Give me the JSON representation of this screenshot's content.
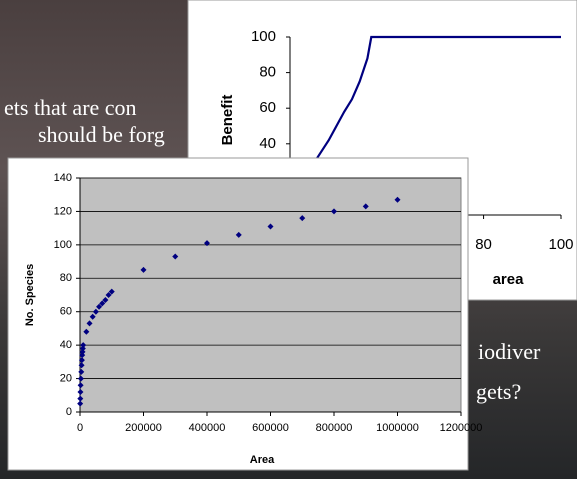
{
  "slide_text": [
    "ets that are con",
    "should be forg",
    "iodiver",
    "gets?"
  ],
  "chart_data": [
    {
      "type": "line",
      "y_label": "Benefit",
      "x_label": "area",
      "series": [
        {
          "name": "Benefit",
          "color": "#000080",
          "x": [
            37,
            40,
            42,
            44,
            46,
            48,
            50,
            51,
            100
          ],
          "values": [
            32,
            42,
            50,
            58,
            65,
            75,
            88,
            100,
            100
          ]
        }
      ],
      "xlim": [
        30,
        100
      ],
      "xticks": [
        80,
        100
      ],
      "ylim": [
        0,
        100
      ],
      "yticks": [
        40,
        60,
        80,
        100
      ]
    },
    {
      "type": "scatter",
      "y_label": "No. Species",
      "x_label": "Area",
      "series": [
        {
          "name": "No. Species",
          "color": "#000080",
          "x": [
            500,
            1000,
            1500,
            2000,
            3000,
            4000,
            5000,
            6000,
            7000,
            8000,
            9000,
            10000,
            20000,
            30000,
            40000,
            50000,
            60000,
            70000,
            80000,
            90000,
            100000,
            200000,
            300000,
            400000,
            500000,
            600000,
            700000,
            800000,
            900000,
            1000000
          ],
          "values": [
            5,
            8,
            12,
            16,
            20,
            24,
            28,
            31,
            34,
            36,
            38,
            40,
            48,
            53,
            57,
            60,
            63,
            65,
            67,
            70,
            72,
            85,
            93,
            101,
            106,
            111,
            116,
            120,
            123,
            127
          ]
        }
      ],
      "xlim": [
        0,
        1200000
      ],
      "xticks": [
        0,
        200000,
        400000,
        600000,
        800000,
        1000000,
        1200000
      ],
      "ylim": [
        0,
        140
      ],
      "yticks": [
        0,
        20,
        40,
        60,
        80,
        100,
        120,
        140
      ],
      "grid": true
    }
  ]
}
